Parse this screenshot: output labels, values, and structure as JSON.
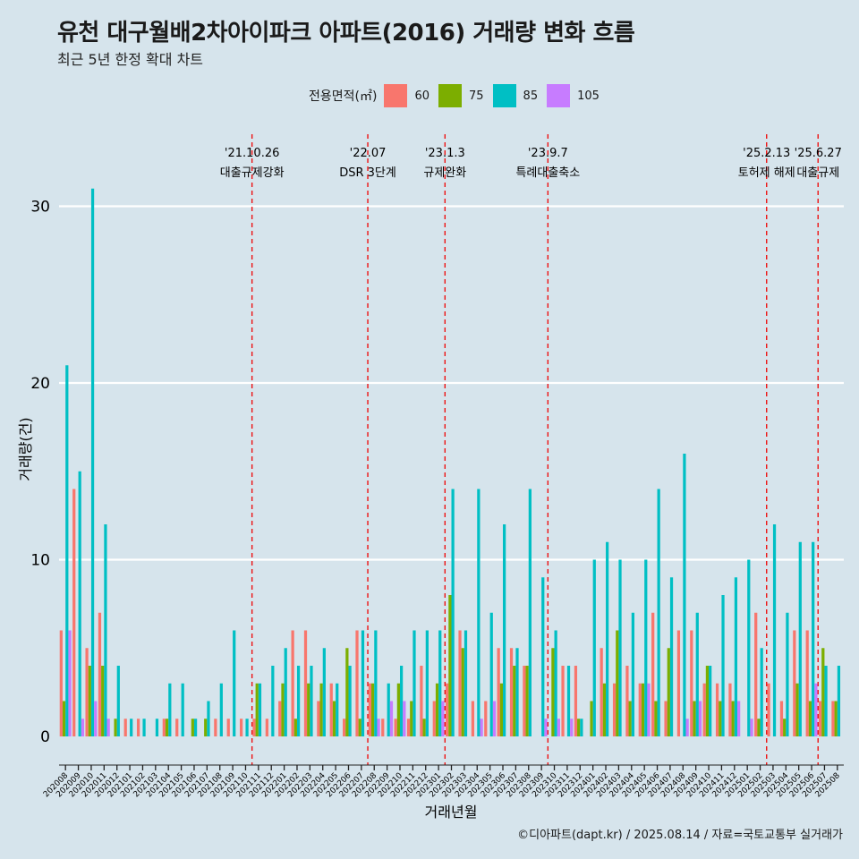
{
  "title": "유천 대구월배2차아이파크 아파트(2016) 거래량 변화 흐름",
  "subtitle": "최근 5년 한정 확대 차트",
  "legend": {
    "title": "전용면적(㎡)",
    "items": [
      {
        "label": "60",
        "color": "#f8766d"
      },
      {
        "label": "75",
        "color": "#7cae00"
      },
      {
        "label": "85",
        "color": "#00bfc4"
      },
      {
        "label": "105",
        "color": "#c77cff"
      }
    ]
  },
  "caption": "©디아파트(dapt.kr) / 2025.08.14 / 자료=국토교통부 실거래가",
  "chart_data": {
    "type": "bar",
    "xlabel": "거래년월",
    "ylabel": "거래량(건)",
    "ylim": [
      0,
      32
    ],
    "yticks": [
      0,
      10,
      20,
      30
    ],
    "grid": "horizontal",
    "legend_position": "top",
    "categories": [
      "202008",
      "202009",
      "202010",
      "202011",
      "202012",
      "202101",
      "202102",
      "202103",
      "202104",
      "202105",
      "202106",
      "202107",
      "202108",
      "202109",
      "202110",
      "202111",
      "202112",
      "202201",
      "202202",
      "202203",
      "202204",
      "202205",
      "202206",
      "202207",
      "202208",
      "202209",
      "202210",
      "202211",
      "202212",
      "202301",
      "202302",
      "202303",
      "202304",
      "202305",
      "202306",
      "202307",
      "202308",
      "202309",
      "202310",
      "202311",
      "202312",
      "202401",
      "202402",
      "202403",
      "202404",
      "202405",
      "202406",
      "202407",
      "202408",
      "202409",
      "202410",
      "202411",
      "202412",
      "202501",
      "202502",
      "202503",
      "202504",
      "202505",
      "202506",
      "202507",
      "202508"
    ],
    "series": [
      {
        "name": "60",
        "color": "#f8766d",
        "values": [
          6,
          14,
          5,
          7,
          0,
          1,
          1,
          0,
          1,
          1,
          0,
          0,
          1,
          1,
          1,
          1,
          1,
          2,
          6,
          6,
          2,
          3,
          1,
          6,
          3,
          1,
          1,
          1,
          4,
          2,
          3,
          6,
          2,
          2,
          5,
          5,
          4,
          0,
          0,
          4,
          4,
          0,
          5,
          3,
          4,
          3,
          7,
          2,
          6,
          6,
          3,
          3,
          3,
          0,
          7,
          3,
          2,
          6,
          6,
          2,
          2
        ]
      },
      {
        "name": "75",
        "color": "#7cae00",
        "values": [
          2,
          0,
          4,
          4,
          1,
          0,
          0,
          0,
          1,
          0,
          1,
          1,
          0,
          0,
          0,
          3,
          0,
          3,
          1,
          3,
          3,
          2,
          5,
          1,
          3,
          0,
          3,
          2,
          1,
          3,
          8,
          5,
          0,
          0,
          3,
          4,
          4,
          0,
          5,
          0,
          1,
          2,
          3,
          6,
          2,
          3,
          2,
          5,
          0,
          2,
          4,
          2,
          2,
          0,
          1,
          0,
          1,
          3,
          2,
          5,
          2
        ]
      },
      {
        "name": "85",
        "color": "#00bfc4",
        "values": [
          21,
          15,
          31,
          12,
          4,
          1,
          1,
          1,
          3,
          3,
          1,
          2,
          3,
          6,
          1,
          3,
          4,
          5,
          4,
          4,
          5,
          3,
          4,
          6,
          6,
          3,
          4,
          6,
          6,
          6,
          14,
          6,
          14,
          7,
          12,
          5,
          14,
          9,
          6,
          4,
          1,
          10,
          11,
          10,
          7,
          10,
          14,
          9,
          16,
          7,
          4,
          8,
          9,
          10,
          5,
          12,
          7,
          11,
          11,
          4,
          4
        ]
      },
      {
        "name": "105",
        "color": "#c77cff",
        "values": [
          6,
          1,
          2,
          1,
          0,
          0,
          0,
          0,
          0,
          0,
          0,
          0,
          0,
          0,
          0,
          0,
          0,
          0,
          0,
          0,
          0,
          0,
          0,
          0,
          1,
          2,
          2,
          0,
          0,
          2,
          0,
          0,
          1,
          2,
          0,
          0,
          0,
          1,
          1,
          1,
          0,
          0,
          0,
          0,
          0,
          3,
          0,
          0,
          1,
          2,
          0,
          0,
          2,
          1,
          0,
          0,
          0,
          0,
          3,
          0,
          0
        ]
      }
    ],
    "annotations": [
      {
        "after_category": "202110",
        "date": "'21.10.26",
        "label": "대출규제강화"
      },
      {
        "after_category": "202207",
        "date": "'22.07",
        "label": "DSR 3단계"
      },
      {
        "after_category": "202301",
        "date": "'23.1.3",
        "label": "규제완화"
      },
      {
        "after_category": "202309",
        "date": "'23.9.7",
        "label": "특례대출축소"
      },
      {
        "after_category": "202502",
        "date": "'25.2.13",
        "label": "토허제 해제"
      },
      {
        "after_category": "202506",
        "date": "'25.6.27",
        "label": "대출규제"
      }
    ]
  }
}
